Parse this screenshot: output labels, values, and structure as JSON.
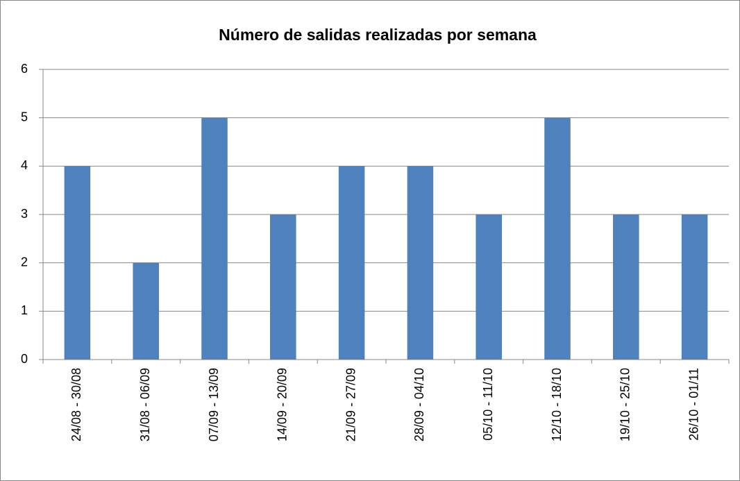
{
  "chart_data": {
    "type": "bar",
    "title": "Número de salidas realizadas por semana",
    "categories": [
      "24/08 - 30/08",
      "31/08 - 06/09",
      "07/09 - 13/09",
      "14/09 - 20/09",
      "21/09 - 27/09",
      "28/09 - 04/10",
      "05/10 - 11/10",
      "12/10 - 18/10",
      "19/10 - 25/10",
      "26/10 - 01/11"
    ],
    "values": [
      4,
      2,
      5,
      3,
      4,
      4,
      3,
      5,
      3,
      3
    ],
    "color": "#4f81bd",
    "ylim": [
      0,
      6
    ],
    "yticks": [
      0,
      1,
      2,
      3,
      4,
      5,
      6
    ],
    "grid": true
  }
}
